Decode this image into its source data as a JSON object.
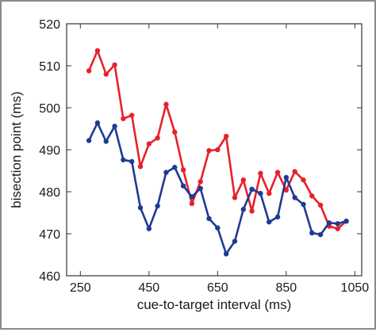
{
  "chart_data": {
    "type": "line",
    "title": "",
    "xlabel": "cue-to-target interval (ms)",
    "ylabel": "bisection point (ms)",
    "xlim": [
      210,
      1070
    ],
    "ylim": [
      460,
      520
    ],
    "xticks": [
      250,
      450,
      650,
      850,
      1050
    ],
    "yticks": [
      460,
      470,
      480,
      490,
      500,
      510,
      520
    ],
    "xtick_labels": [
      "250",
      "450",
      "650",
      "850",
      "1050"
    ],
    "ytick_labels": [
      "460",
      "470",
      "480",
      "490",
      "500",
      "510",
      "520"
    ],
    "grid": false,
    "legend": "none",
    "series": [
      {
        "color": "#e8202a",
        "x": [
          275,
          300,
          325,
          350,
          375,
          400,
          425,
          450,
          475,
          500,
          525,
          550,
          575,
          600,
          625,
          650,
          675,
          700,
          725,
          750,
          775,
          800,
          825,
          850,
          875,
          900,
          925,
          950,
          975,
          1000,
          1025
        ],
        "y": [
          508.8,
          513.6,
          508.0,
          510.2,
          497.4,
          498.2,
          486.0,
          491.4,
          492.8,
          500.8,
          494.2,
          485.2,
          477.2,
          482.4,
          489.8,
          490.0,
          493.2,
          478.6,
          482.8,
          475.4,
          484.4,
          479.6,
          484.6,
          480.4,
          484.8,
          482.8,
          479.0,
          476.8,
          471.8,
          471.2,
          473.0
        ]
      },
      {
        "color": "#1f3a93",
        "x": [
          275,
          300,
          325,
          350,
          375,
          400,
          425,
          450,
          475,
          500,
          525,
          550,
          575,
          600,
          625,
          650,
          675,
          700,
          725,
          750,
          775,
          800,
          825,
          850,
          875,
          900,
          925,
          950,
          975,
          1000,
          1025
        ],
        "y": [
          492.2,
          496.4,
          492.0,
          495.6,
          487.6,
          487.2,
          476.2,
          471.2,
          476.6,
          484.6,
          485.8,
          481.4,
          478.8,
          480.8,
          473.6,
          471.4,
          465.2,
          468.2,
          475.8,
          480.6,
          479.6,
          472.8,
          474.0,
          483.4,
          478.6,
          477.0,
          470.2,
          469.8,
          472.6,
          472.4,
          473.0
        ]
      }
    ]
  }
}
